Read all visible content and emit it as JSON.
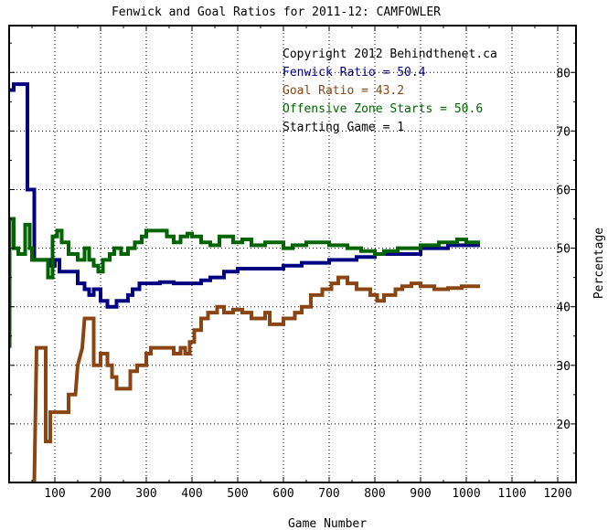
{
  "chart_data": {
    "type": "line",
    "title": "Fenwick and Goal Ratios for 2011-12: CAMFOWLER",
    "xlabel": "Game Number",
    "ylabel": "Percentage",
    "xlim": [
      0,
      1240
    ],
    "ylim": [
      10,
      88
    ],
    "x_ticks": [
      100,
      200,
      300,
      400,
      500,
      600,
      700,
      800,
      900,
      1000,
      1100,
      1200
    ],
    "y_ticks": [
      20,
      30,
      40,
      50,
      60,
      70,
      80
    ],
    "grid": true,
    "legend_position": "top-right",
    "annotations": [
      {
        "text": "Copyright 2012 Behindthenet.ca",
        "color": "#000000"
      },
      {
        "text": "Fenwick Ratio = 50.4",
        "color": "#000080"
      },
      {
        "text": "Goal Ratio = 43.2",
        "color": "#8b4513"
      },
      {
        "text": "Offensive Zone Starts = 50.6",
        "color": "#006400"
      },
      {
        "text": "Starting Game = 1",
        "color": "#000000"
      }
    ],
    "series": [
      {
        "name": "Fenwick Ratio",
        "color": "#000080",
        "points": [
          [
            1,
            77
          ],
          [
            10,
            77
          ],
          [
            10,
            78
          ],
          [
            40,
            78
          ],
          [
            40,
            60
          ],
          [
            55,
            60
          ],
          [
            55,
            48
          ],
          [
            90,
            48
          ],
          [
            90,
            47
          ],
          [
            100,
            47
          ],
          [
            100,
            48
          ],
          [
            110,
            48
          ],
          [
            110,
            46
          ],
          [
            150,
            46
          ],
          [
            150,
            44
          ],
          [
            165,
            44
          ],
          [
            165,
            43
          ],
          [
            175,
            43
          ],
          [
            175,
            42
          ],
          [
            185,
            42
          ],
          [
            185,
            43
          ],
          [
            200,
            43
          ],
          [
            200,
            41
          ],
          [
            215,
            41
          ],
          [
            215,
            40
          ],
          [
            235,
            40
          ],
          [
            235,
            41
          ],
          [
            260,
            41
          ],
          [
            260,
            42
          ],
          [
            270,
            42
          ],
          [
            270,
            43
          ],
          [
            285,
            43
          ],
          [
            285,
            44
          ],
          [
            330,
            44
          ],
          [
            330,
            44.2
          ],
          [
            360,
            44.2
          ],
          [
            360,
            44
          ],
          [
            420,
            44
          ],
          [
            420,
            44.5
          ],
          [
            440,
            44.5
          ],
          [
            440,
            45
          ],
          [
            470,
            45
          ],
          [
            470,
            46
          ],
          [
            500,
            46
          ],
          [
            500,
            46.5
          ],
          [
            600,
            46.5
          ],
          [
            600,
            47
          ],
          [
            640,
            47
          ],
          [
            640,
            47.5
          ],
          [
            700,
            47.5
          ],
          [
            700,
            48
          ],
          [
            760,
            48
          ],
          [
            760,
            48.5
          ],
          [
            800,
            48.5
          ],
          [
            800,
            49
          ],
          [
            900,
            49
          ],
          [
            900,
            50
          ],
          [
            960,
            50
          ],
          [
            960,
            50.5
          ],
          [
            1030,
            50.5
          ]
        ]
      },
      {
        "name": "Goal Ratio",
        "color": "#8b4513",
        "points": [
          [
            55,
            10
          ],
          [
            60,
            33
          ],
          [
            80,
            33
          ],
          [
            80,
            17
          ],
          [
            90,
            17
          ],
          [
            90,
            22
          ],
          [
            130,
            22
          ],
          [
            130,
            25
          ],
          [
            145,
            25
          ],
          [
            150,
            30
          ],
          [
            160,
            33
          ],
          [
            165,
            38
          ],
          [
            185,
            38
          ],
          [
            185,
            30
          ],
          [
            200,
            30
          ],
          [
            200,
            32
          ],
          [
            215,
            32
          ],
          [
            215,
            30
          ],
          [
            225,
            30
          ],
          [
            225,
            28
          ],
          [
            235,
            28
          ],
          [
            235,
            26
          ],
          [
            265,
            26
          ],
          [
            265,
            29
          ],
          [
            280,
            29
          ],
          [
            280,
            30
          ],
          [
            300,
            30
          ],
          [
            300,
            32
          ],
          [
            310,
            32
          ],
          [
            310,
            33
          ],
          [
            360,
            33
          ],
          [
            360,
            32
          ],
          [
            375,
            32
          ],
          [
            375,
            33
          ],
          [
            385,
            33
          ],
          [
            385,
            32
          ],
          [
            395,
            32
          ],
          [
            395,
            34
          ],
          [
            405,
            34
          ],
          [
            405,
            36
          ],
          [
            420,
            36
          ],
          [
            420,
            38
          ],
          [
            435,
            38
          ],
          [
            435,
            39
          ],
          [
            455,
            39
          ],
          [
            455,
            40
          ],
          [
            470,
            40
          ],
          [
            470,
            39
          ],
          [
            490,
            39
          ],
          [
            490,
            39.5
          ],
          [
            510,
            39.5
          ],
          [
            510,
            39
          ],
          [
            530,
            39
          ],
          [
            530,
            38
          ],
          [
            560,
            38
          ],
          [
            560,
            39
          ],
          [
            570,
            39
          ],
          [
            570,
            37
          ],
          [
            600,
            37
          ],
          [
            600,
            38
          ],
          [
            625,
            38
          ],
          [
            625,
            39
          ],
          [
            640,
            39
          ],
          [
            640,
            40
          ],
          [
            660,
            40
          ],
          [
            660,
            42
          ],
          [
            685,
            42
          ],
          [
            685,
            43
          ],
          [
            705,
            43
          ],
          [
            705,
            44
          ],
          [
            720,
            44
          ],
          [
            720,
            45
          ],
          [
            740,
            45
          ],
          [
            740,
            44
          ],
          [
            760,
            44
          ],
          [
            760,
            43
          ],
          [
            790,
            43
          ],
          [
            790,
            42
          ],
          [
            805,
            42
          ],
          [
            805,
            41
          ],
          [
            820,
            41
          ],
          [
            820,
            42
          ],
          [
            845,
            42
          ],
          [
            845,
            43
          ],
          [
            860,
            43
          ],
          [
            860,
            43.5
          ],
          [
            880,
            43.5
          ],
          [
            880,
            44
          ],
          [
            900,
            44
          ],
          [
            900,
            43.5
          ],
          [
            930,
            43.5
          ],
          [
            930,
            43
          ],
          [
            960,
            43
          ],
          [
            960,
            43.2
          ],
          [
            990,
            43.2
          ],
          [
            990,
            43.5
          ],
          [
            1030,
            43.5
          ]
        ]
      },
      {
        "name": "Offensive Zone Starts",
        "color": "#006400",
        "points": [
          [
            1,
            33
          ],
          [
            1,
            55
          ],
          [
            10,
            55
          ],
          [
            10,
            50
          ],
          [
            20,
            50
          ],
          [
            20,
            49
          ],
          [
            35,
            49
          ],
          [
            35,
            54
          ],
          [
            45,
            54
          ],
          [
            45,
            50
          ],
          [
            50,
            50
          ],
          [
            50,
            48
          ],
          [
            85,
            48
          ],
          [
            85,
            45
          ],
          [
            95,
            45
          ],
          [
            95,
            52
          ],
          [
            105,
            52
          ],
          [
            105,
            53
          ],
          [
            115,
            53
          ],
          [
            115,
            51
          ],
          [
            130,
            51
          ],
          [
            130,
            49
          ],
          [
            150,
            49
          ],
          [
            150,
            48
          ],
          [
            165,
            48
          ],
          [
            165,
            50
          ],
          [
            175,
            50
          ],
          [
            175,
            48
          ],
          [
            185,
            48
          ],
          [
            185,
            47
          ],
          [
            195,
            47
          ],
          [
            195,
            46
          ],
          [
            205,
            46
          ],
          [
            205,
            48
          ],
          [
            220,
            48
          ],
          [
            220,
            49
          ],
          [
            230,
            49
          ],
          [
            230,
            50
          ],
          [
            245,
            50
          ],
          [
            245,
            49
          ],
          [
            260,
            49
          ],
          [
            260,
            50
          ],
          [
            275,
            50
          ],
          [
            275,
            51
          ],
          [
            290,
            51
          ],
          [
            290,
            52
          ],
          [
            300,
            52
          ],
          [
            300,
            53
          ],
          [
            345,
            53
          ],
          [
            345,
            52
          ],
          [
            360,
            52
          ],
          [
            360,
            51
          ],
          [
            375,
            51
          ],
          [
            375,
            52
          ],
          [
            390,
            52
          ],
          [
            390,
            52.5
          ],
          [
            400,
            52.5
          ],
          [
            400,
            52
          ],
          [
            420,
            52
          ],
          [
            420,
            51
          ],
          [
            440,
            51
          ],
          [
            440,
            50.5
          ],
          [
            460,
            50.5
          ],
          [
            460,
            52
          ],
          [
            490,
            52
          ],
          [
            490,
            51
          ],
          [
            510,
            51
          ],
          [
            510,
            51.5
          ],
          [
            530,
            51.5
          ],
          [
            530,
            50.5
          ],
          [
            560,
            50.5
          ],
          [
            560,
            51
          ],
          [
            600,
            51
          ],
          [
            600,
            50
          ],
          [
            620,
            50
          ],
          [
            620,
            50.5
          ],
          [
            650,
            50.5
          ],
          [
            650,
            51
          ],
          [
            700,
            51
          ],
          [
            700,
            50.5
          ],
          [
            740,
            50.5
          ],
          [
            740,
            50
          ],
          [
            770,
            50
          ],
          [
            770,
            49.5
          ],
          [
            800,
            49.5
          ],
          [
            800,
            49
          ],
          [
            820,
            49
          ],
          [
            820,
            49.5
          ],
          [
            850,
            49.5
          ],
          [
            850,
            50
          ],
          [
            900,
            50
          ],
          [
            900,
            50.5
          ],
          [
            940,
            50.5
          ],
          [
            940,
            51
          ],
          [
            980,
            51
          ],
          [
            980,
            51.5
          ],
          [
            1000,
            51.5
          ],
          [
            1000,
            51
          ],
          [
            1030,
            51
          ]
        ]
      }
    ]
  }
}
